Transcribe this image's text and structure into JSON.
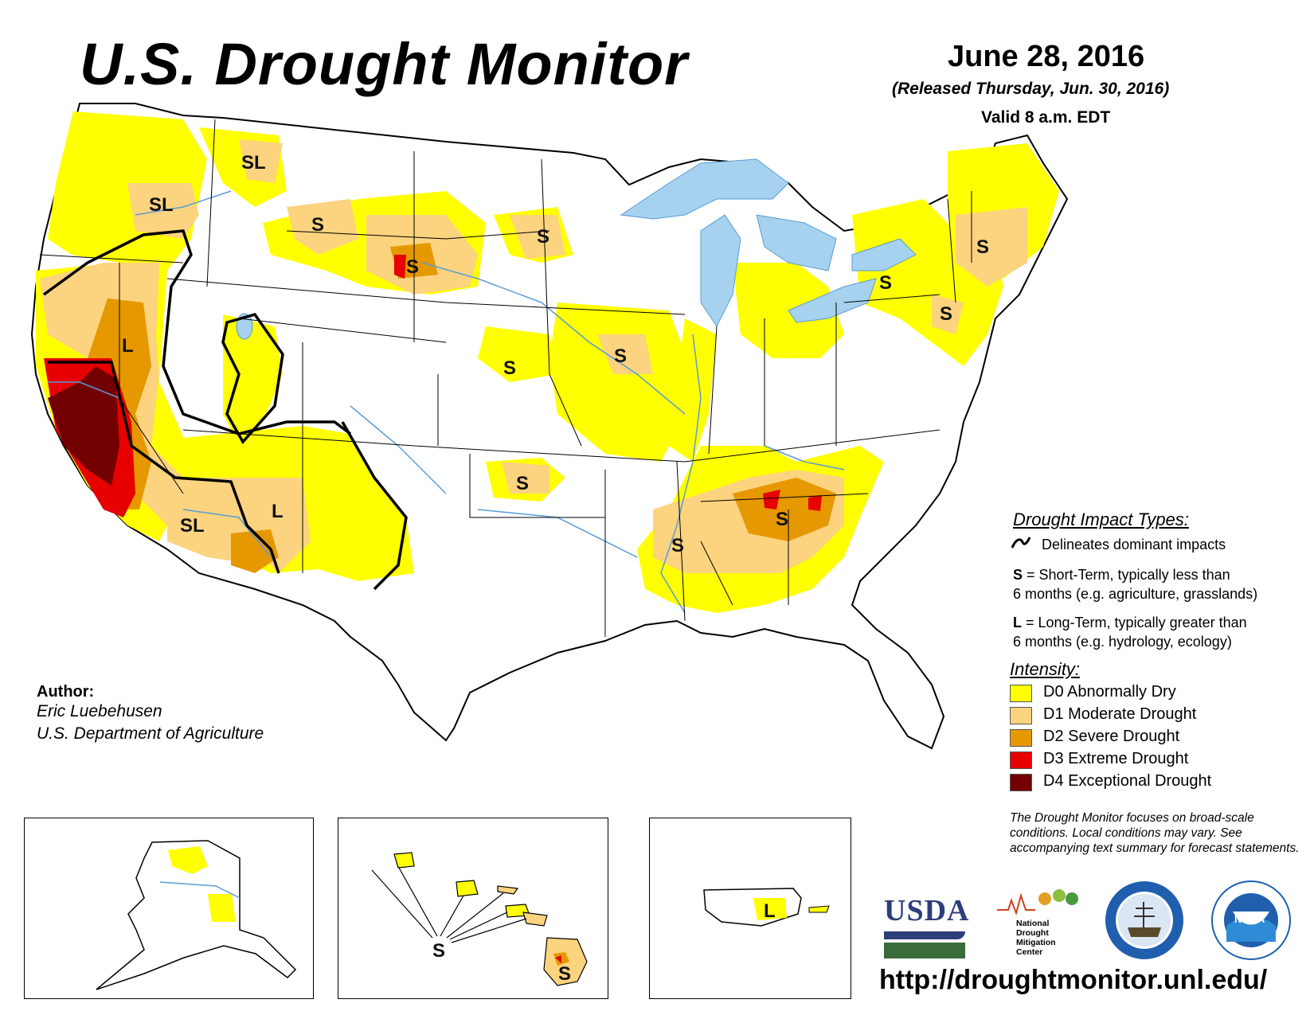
{
  "header": {
    "title": "U.S. Drought Monitor",
    "date": "June 28, 2016",
    "released": "(Released Thursday, Jun. 30, 2016)",
    "valid": "Valid 8 a.m. EDT"
  },
  "map_labels": {
    "sl_idaho": "SL",
    "sl_oregon": "SL",
    "s_montana": "S",
    "s_wyoming_sd": "S",
    "s_nd": "S",
    "l_nevada": "L",
    "s_kansas": "S",
    "s_iowa": "S",
    "s_oklahoma": "S",
    "sl_arizona": "SL",
    "l_new_mexico": "L",
    "s_mississippi": "S",
    "s_georgia": "S",
    "s_new_york": "S",
    "s_new_england": "S",
    "s_new_jersey": "S",
    "s_hawaii_pointer": "S",
    "s_big_island": "S",
    "l_puerto_rico": "L"
  },
  "legend": {
    "impact_title": "Drought Impact Types:",
    "delineates": "Delineates dominant impacts",
    "s_key": "S",
    "s_desc_line1": " = Short-Term, typically less than",
    "s_desc_line2": "6 months (e.g. agriculture, grasslands)",
    "l_key": "L",
    "l_desc_line1": " = Long-Term, typically greater than",
    "l_desc_line2": "6 months (e.g. hydrology, ecology)",
    "intensity_title": "Intensity:",
    "categories": [
      {
        "label": "D0 Abnormally Dry",
        "color": "#ffff00"
      },
      {
        "label": "D1 Moderate Drought",
        "color": "#fcd37f"
      },
      {
        "label": "D2 Severe Drought",
        "color": "#e69800"
      },
      {
        "label": "D3 Extreme Drought",
        "color": "#e60000"
      },
      {
        "label": "D4 Exceptional Drought",
        "color": "#730000"
      }
    ]
  },
  "author": {
    "label": "Author:",
    "name": "Eric Luebehusen",
    "org": "U.S. Department of Agriculture"
  },
  "disclaimer": "The Drought Monitor focuses on broad-scale conditions. Local conditions may vary. See accompanying text summary for forecast statements.",
  "logos": {
    "usda": "USDA",
    "ndmc_line1": "National",
    "ndmc_line2": "Drought",
    "ndmc_line3": "Mitigation",
    "ndmc_line4": "Center",
    "noaa": "NOAA"
  },
  "url": "http://droughtmonitor.unl.edu/",
  "colors": {
    "water": "#a6d2ef",
    "river": "#5b9bd5",
    "border": "#000000"
  }
}
